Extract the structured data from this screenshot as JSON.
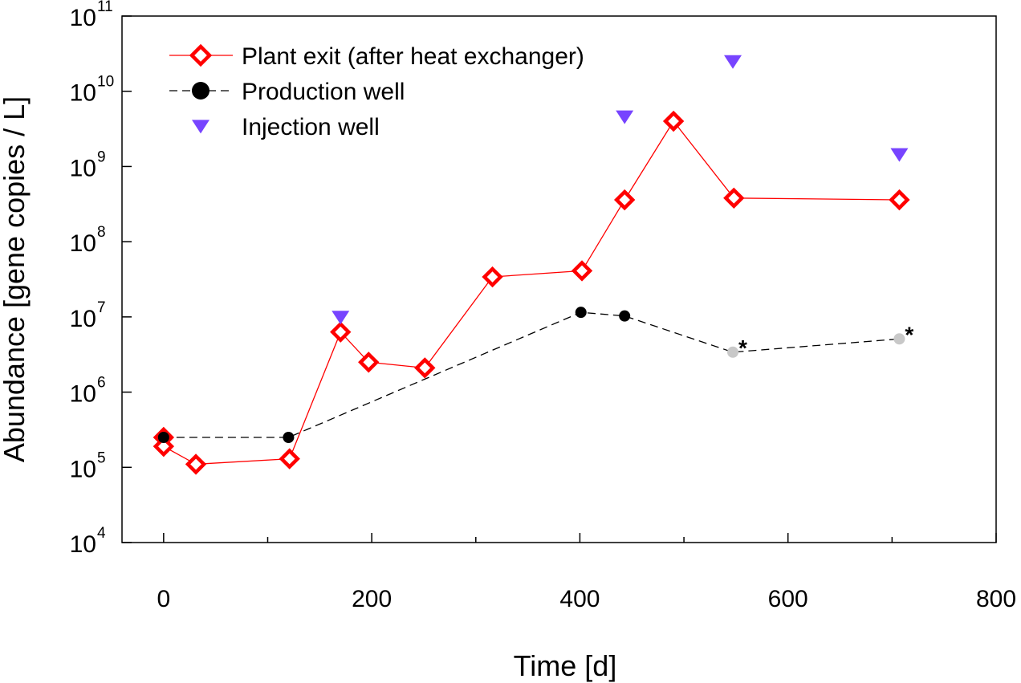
{
  "chart_data": {
    "type": "line",
    "xlabel": "Time [d]",
    "ylabel": "Abundance [gene copies / L]",
    "xlim": [
      -40,
      800
    ],
    "ylim_log10": [
      4,
      11
    ],
    "y_scale": "log",
    "x_ticks": [
      {
        "value": 0,
        "label": "0"
      },
      {
        "value": 200,
        "label": "200"
      },
      {
        "value": 400,
        "label": "400"
      },
      {
        "value": 600,
        "label": "600"
      },
      {
        "value": 800,
        "label": "800"
      }
    ],
    "x_minor_ticks": [
      100,
      300,
      500,
      700
    ],
    "y_ticks": [
      {
        "exp": 4,
        "base": "10",
        "power": "4"
      },
      {
        "exp": 5,
        "base": "10",
        "power": "5"
      },
      {
        "exp": 6,
        "base": "10",
        "power": "6"
      },
      {
        "exp": 7,
        "base": "10",
        "power": "7"
      },
      {
        "exp": 8,
        "base": "10",
        "power": "8"
      },
      {
        "exp": 9,
        "base": "10",
        "power": "9"
      },
      {
        "exp": 10,
        "base": "10",
        "power": "10"
      },
      {
        "exp": 11,
        "base": "10",
        "power": "11"
      }
    ],
    "grid": false,
    "legend_position": "top-left",
    "series": [
      {
        "name": "Plant exit (after heat exchanger)",
        "marker": "diamond",
        "line": "solid",
        "color": "#ff0000",
        "points": [
          {
            "x": 0,
            "y": 250000
          },
          {
            "x": 0,
            "y": 190000
          },
          {
            "x": 31,
            "y": 110000
          },
          {
            "x": 121,
            "y": 130000
          },
          {
            "x": 170,
            "y": 6300000
          },
          {
            "x": 197,
            "y": 2500000
          },
          {
            "x": 251,
            "y": 2100000
          },
          {
            "x": 316,
            "y": 34000000
          },
          {
            "x": 402,
            "y": 41000000
          },
          {
            "x": 443,
            "y": 360000000
          },
          {
            "x": 490,
            "y": 4000000000
          },
          {
            "x": 548,
            "y": 380000000
          },
          {
            "x": 707,
            "y": 360000000
          }
        ]
      },
      {
        "name": "Production well",
        "marker": "circle",
        "line": "dashed",
        "color": "#000000",
        "points": [
          {
            "x": 0,
            "y": 250000
          },
          {
            "x": 120,
            "y": 250000
          },
          {
            "x": 401,
            "y": 11500000
          },
          {
            "x": 443,
            "y": 10300000
          },
          {
            "x": 547,
            "y": 3400000,
            "color": "#c8c8c8",
            "annotation": "*"
          },
          {
            "x": 707,
            "y": 5100000,
            "color": "#c8c8c8",
            "annotation": "*"
          }
        ]
      },
      {
        "name": "Injection well",
        "marker": "triangle-down",
        "line": "none",
        "color": "#7744ff",
        "points": [
          {
            "x": 170,
            "y": 10000000
          },
          {
            "x": 443,
            "y": 4600000000
          },
          {
            "x": 547,
            "y": 25000000000
          },
          {
            "x": 707,
            "y": 1450000000
          }
        ]
      }
    ]
  }
}
